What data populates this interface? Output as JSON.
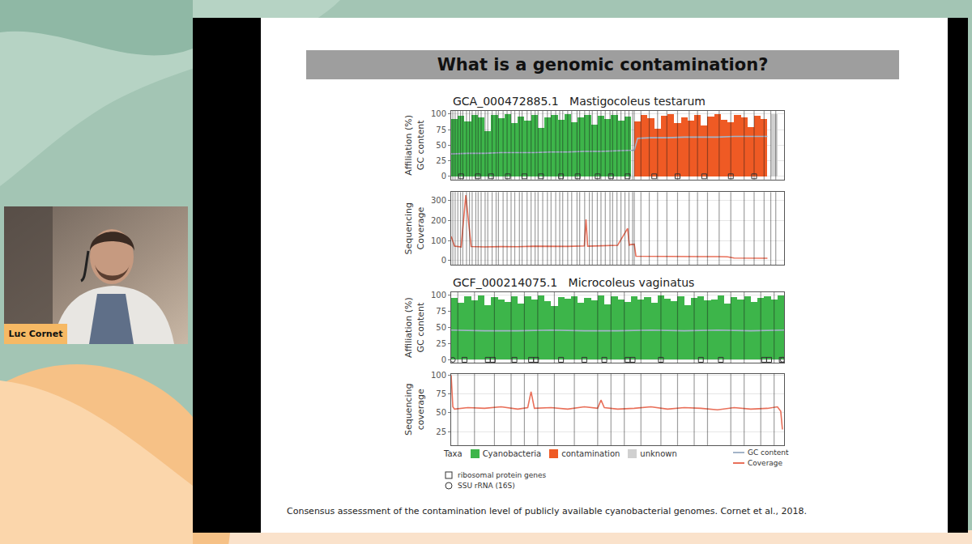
{
  "page": {
    "speaker": "Luc Cornet",
    "slide_title": "What is a genomic contamination?",
    "citation": "Consensus assessment of the contamination level of publicly available cyanobacterial genomes. Cornet et al., 2018.",
    "legend_title": "Taxa"
  },
  "chart_data": [
    {
      "type": "bar",
      "title": "GCA_000472885.1",
      "subtitle": "Mastigocoleus testarum",
      "ylabel": [
        "Affiliation (%)",
        "GC content"
      ],
      "xlim": [
        0,
        100
      ],
      "ylim": [
        -5,
        105
      ],
      "yticks": [
        0,
        25,
        50,
        75,
        100
      ],
      "grid": true,
      "tick_labels": "y",
      "contig_boundaries": [
        0.5,
        1.2,
        2,
        2.8,
        3.5,
        4.6,
        5.5,
        6.3,
        7.4,
        8.1,
        9,
        10.2,
        11,
        12.3,
        13.5,
        14.2,
        15.6,
        16.8,
        18,
        19.1,
        20.5,
        21.3,
        22.8,
        24,
        25.2,
        26.1,
        27.5,
        28.9,
        30,
        31.4,
        32.6,
        33.5,
        35,
        36.2,
        37.8,
        38.6,
        40.1,
        41.5,
        42.4,
        43.9,
        45,
        46.3,
        47.7,
        48.5,
        49.8,
        51,
        52.2,
        53.4,
        54.5,
        55,
        57,
        59.5,
        62,
        64.8,
        68,
        71.5,
        74,
        77,
        80.5,
        84,
        88,
        91,
        94,
        96,
        97.5
      ],
      "series": [
        {
          "name": "Cyanobacteria",
          "type": "bar",
          "color": "#3db54a",
          "x": [
            1,
            3,
            5,
            7,
            9,
            11,
            13,
            15,
            17,
            19,
            21,
            23,
            25,
            27,
            29,
            31,
            33,
            35,
            37,
            39,
            41,
            43,
            45,
            47,
            49,
            51,
            53
          ],
          "values": [
            92,
            97,
            88,
            99,
            95,
            72,
            98,
            93,
            100,
            85,
            96,
            90,
            99,
            78,
            94,
            98,
            91,
            100,
            87,
            95,
            99,
            83,
            97,
            92,
            98,
            89,
            96
          ]
        },
        {
          "name": "contamination",
          "type": "bar",
          "color": "#ef5a24",
          "x": [
            56,
            58,
            60,
            62,
            64,
            66,
            68,
            70,
            72,
            74,
            76,
            78,
            80,
            82,
            84,
            86,
            88,
            90,
            92,
            94
          ],
          "values": [
            88,
            99,
            93,
            76,
            97,
            100,
            85,
            95,
            90,
            98,
            82,
            96,
            100,
            91,
            87,
            99,
            94,
            79,
            97,
            92
          ]
        },
        {
          "name": "unknown",
          "type": "bar",
          "color": "#d0d0d0",
          "x": [
            97
          ],
          "values": [
            100
          ]
        },
        {
          "name": "GC content",
          "type": "line",
          "color": "#a3b4c8",
          "x": [
            0,
            5,
            10,
            15,
            20,
            25,
            30,
            35,
            40,
            45,
            50,
            55,
            56,
            60,
            65,
            70,
            75,
            80,
            85,
            90,
            95
          ],
          "values": [
            36,
            37,
            37,
            38,
            38,
            38,
            39,
            39,
            40,
            40,
            41,
            42,
            61,
            62,
            62,
            63,
            63,
            63,
            64,
            64,
            64
          ]
        },
        {
          "name": "ribosomal protein genes",
          "type": "scatter",
          "marker": "square-open",
          "x": [
            3,
            8,
            12,
            17,
            22,
            27,
            33,
            38,
            44,
            48,
            53,
            61,
            68,
            76,
            84,
            91
          ],
          "values": [
            0,
            0,
            0,
            0,
            0,
            0,
            0,
            0,
            0,
            0,
            0,
            0,
            0,
            0,
            0,
            0
          ]
        }
      ]
    },
    {
      "type": "line",
      "ylabel": [
        "Sequencing",
        "Coverage"
      ],
      "xlim": [
        0,
        100
      ],
      "ylim": [
        -20,
        340
      ],
      "yticks": [
        0,
        100,
        200,
        300
      ],
      "grid": true,
      "tick_labels": "y",
      "contig_boundaries": [
        0.5,
        1.2,
        2,
        2.8,
        3.5,
        4.6,
        5.5,
        6.3,
        7.4,
        8.1,
        9,
        10.2,
        11,
        12.3,
        13.5,
        14.2,
        15.6,
        16.8,
        18,
        19.1,
        20.5,
        21.3,
        22.8,
        24,
        25.2,
        26.1,
        27.5,
        28.9,
        30,
        31.4,
        32.6,
        33.5,
        35,
        36.2,
        37.8,
        38.6,
        40.1,
        41.5,
        42.4,
        43.9,
        45,
        46.3,
        47.7,
        48.5,
        49.8,
        51,
        52.2,
        53.4,
        54.5,
        55,
        57,
        59.5,
        62,
        64.8,
        68,
        71.5,
        74,
        77,
        80.5,
        84,
        88,
        91,
        94,
        96,
        97.5
      ],
      "series": [
        {
          "name": "Coverage",
          "type": "line",
          "color": "#e9705a",
          "x": [
            0,
            1,
            3,
            4.4,
            6,
            10,
            15,
            20,
            25,
            30,
            35,
            40,
            40.5,
            41,
            45,
            50,
            53,
            53.5,
            54,
            55,
            55.5,
            60,
            65,
            70,
            75,
            80,
            83,
            85,
            90,
            95
          ],
          "values": [
            120,
            72,
            68,
            325,
            70,
            68,
            70,
            69,
            72,
            70,
            71,
            73,
            205,
            72,
            74,
            76,
            160,
            77,
            80,
            82,
            22,
            21,
            22,
            21,
            20,
            20,
            19,
            13,
            12,
            12
          ]
        }
      ]
    },
    {
      "type": "bar",
      "title": "GCF_000214075.1",
      "subtitle": "Microcoleus vaginatus",
      "ylabel": [
        "Affiliation (%)",
        "GC content"
      ],
      "xlim": [
        0,
        100
      ],
      "ylim": [
        -5,
        105
      ],
      "yticks": [
        0,
        25,
        50,
        75,
        100
      ],
      "grid": true,
      "tick_labels": "y",
      "contig_boundaries": [
        2,
        7,
        13,
        18,
        22,
        26,
        31,
        37,
        44,
        48,
        52,
        57,
        63,
        68,
        73,
        77,
        84,
        88,
        93,
        97
      ],
      "series": [
        {
          "name": "Cyanobacteria",
          "type": "bar",
          "color": "#3db54a",
          "x": [
            1,
            3,
            5,
            7,
            9,
            11,
            13,
            15,
            17,
            19,
            21,
            23,
            25,
            27,
            29,
            31,
            33,
            35,
            37,
            39,
            41,
            43,
            45,
            47,
            49,
            51,
            53,
            55,
            57,
            59,
            61,
            63,
            65,
            67,
            69,
            71,
            73,
            75,
            77,
            79,
            81,
            83,
            85,
            87,
            89,
            91,
            93,
            95,
            97,
            99
          ],
          "values": [
            96,
            88,
            99,
            92,
            100,
            85,
            97,
            94,
            90,
            99,
            87,
            98,
            93,
            100,
            91,
            84,
            97,
            95,
            99,
            89,
            96,
            92,
            100,
            86,
            98,
            94,
            90,
            99,
            93,
            97,
            88,
            100,
            95,
            91,
            98,
            85,
            96,
            99,
            92,
            94,
            100,
            87,
            97,
            93,
            99,
            90,
            96,
            98,
            94,
            100
          ]
        },
        {
          "name": "GC content",
          "type": "line",
          "color": "#a3b4c8",
          "x": [
            0,
            10,
            20,
            30,
            40,
            50,
            60,
            70,
            80,
            90,
            100
          ],
          "values": [
            46,
            45,
            45,
            46,
            45,
            45,
            46,
            45,
            46,
            45,
            46
          ]
        },
        {
          "name": "ribosomal protein genes",
          "type": "scatter",
          "marker": "square-open",
          "x": [
            4,
            11,
            12.5,
            19,
            24,
            25.5,
            33,
            40,
            46,
            53,
            54.5,
            63,
            75,
            81,
            94,
            95.5,
            99.3
          ],
          "values": [
            0,
            0,
            0,
            0,
            0,
            0,
            0,
            0,
            0,
            0,
            0,
            0,
            0,
            0,
            0,
            0,
            0
          ]
        },
        {
          "name": "SSU rRNA (16S)",
          "type": "scatter",
          "marker": "circle-open",
          "x": [
            0.5,
            99.6
          ],
          "values": [
            0,
            0
          ]
        }
      ]
    },
    {
      "type": "line",
      "ylabel": [
        "Sequencing",
        "coverage"
      ],
      "xlim": [
        0,
        100
      ],
      "ylim": [
        7,
        102
      ],
      "yticks": [
        25,
        50,
        75,
        100
      ],
      "grid": true,
      "tick_labels": "y",
      "contig_boundaries": [
        2,
        7,
        13,
        18,
        22,
        26,
        31,
        37,
        44,
        48,
        52,
        57,
        63,
        68,
        73,
        77,
        84,
        88,
        93,
        97
      ],
      "series": [
        {
          "name": "Coverage",
          "type": "line",
          "color": "#e9705a",
          "x": [
            0,
            0.5,
            1,
            5,
            10,
            15,
            20,
            23,
            24,
            25,
            30,
            35,
            40,
            44,
            45,
            46,
            50,
            55,
            60,
            65,
            70,
            75,
            80,
            85,
            90,
            95,
            98,
            99,
            99.5
          ],
          "values": [
            100,
            58,
            55,
            57,
            56,
            58,
            55,
            57,
            78,
            56,
            57,
            55,
            58,
            56,
            67,
            57,
            55,
            56,
            58,
            55,
            57,
            56,
            54,
            57,
            55,
            56,
            58,
            52,
            28
          ]
        }
      ]
    }
  ]
}
